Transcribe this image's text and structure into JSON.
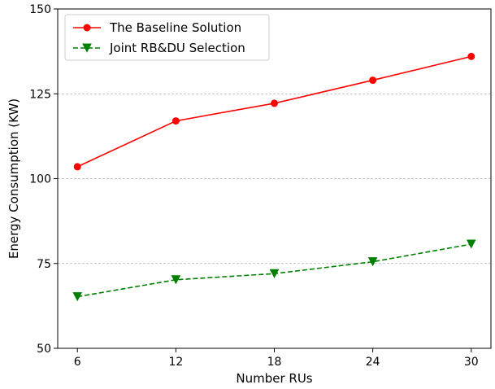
{
  "chart_data": {
    "type": "line",
    "title": "",
    "xlabel": "Number RUs",
    "ylabel": "Energy Consumption (KW)",
    "x": [
      6,
      12,
      18,
      24,
      30
    ],
    "xticks": [
      "6",
      "12",
      "18",
      "24",
      "30"
    ],
    "xlim": [
      4.8,
      31.2
    ],
    "ylim": [
      50,
      150
    ],
    "yticks": [
      "50",
      "75",
      "100",
      "125",
      "150"
    ],
    "grid": "y-dashed",
    "legend_position": "top-left",
    "series": [
      {
        "name": "The Baseline Solution",
        "values": [
          103.5,
          117.0,
          122.2,
          129.0,
          136.0
        ],
        "color": "#ff0000",
        "line_style": "solid",
        "marker": "circle"
      },
      {
        "name": "Joint RB&DU Selection",
        "values": [
          65.2,
          70.2,
          72.0,
          75.5,
          80.7
        ],
        "color": "#008000",
        "line_style": "dashed",
        "marker": "triangle-down"
      }
    ]
  }
}
